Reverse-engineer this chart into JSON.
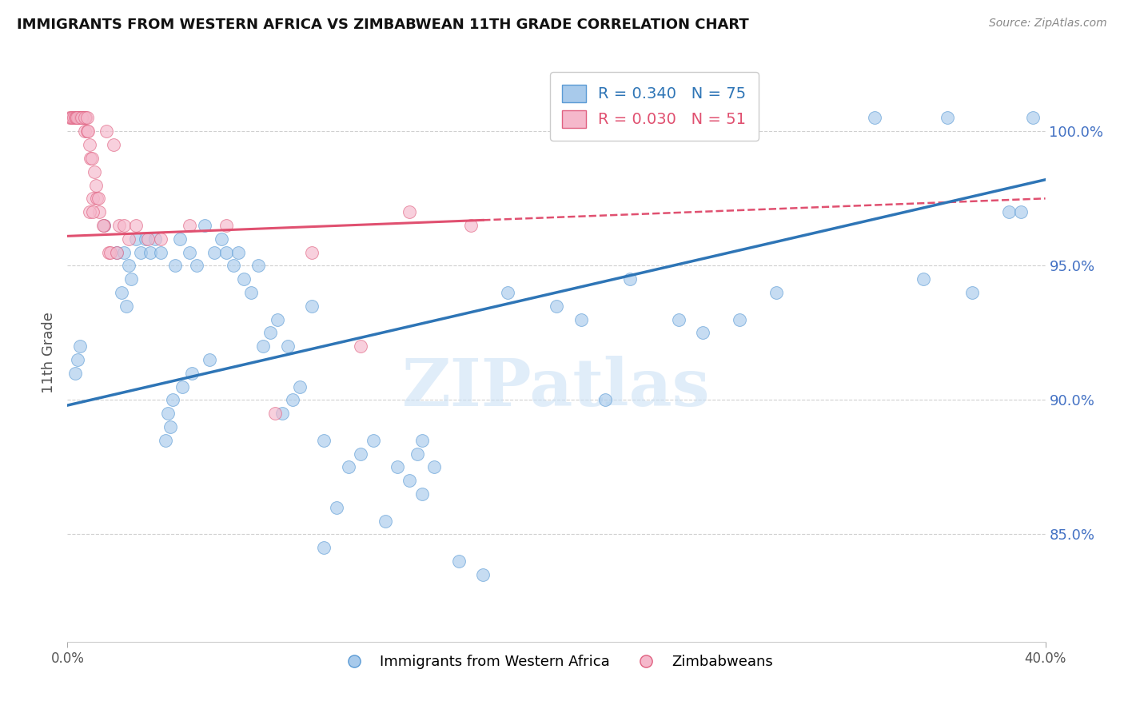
{
  "title": "IMMIGRANTS FROM WESTERN AFRICA VS ZIMBABWEAN 11TH GRADE CORRELATION CHART",
  "source": "Source: ZipAtlas.com",
  "ylabel": "11th Grade",
  "xmin": 0.0,
  "xmax": 40.0,
  "ymin": 81.0,
  "ymax": 102.5,
  "blue_R": 0.34,
  "blue_N": 75,
  "pink_R": 0.03,
  "pink_N": 51,
  "blue_color": "#a8caeb",
  "pink_color": "#f5b8cb",
  "blue_edge_color": "#5b9bd5",
  "pink_edge_color": "#e06080",
  "blue_line_color": "#2e75b6",
  "pink_line_color": "#e05070",
  "blue_legend": "Immigrants from Western Africa",
  "pink_legend": "Zimbabweans",
  "watermark": "ZIPatlas",
  "yticks": [
    85.0,
    90.0,
    95.0,
    100.0
  ],
  "ytick_labels": [
    "85.0%",
    "90.0%",
    "95.0%",
    "100.0%"
  ],
  "blue_trend_x0": 0.0,
  "blue_trend_y0": 89.8,
  "blue_trend_x1": 40.0,
  "blue_trend_y1": 98.2,
  "pink_trend_x0": 0.0,
  "pink_trend_y0": 96.1,
  "pink_trend_x1": 40.0,
  "pink_trend_y1": 97.5,
  "pink_solid_xmax": 17.0,
  "blue_scatter_x": [
    0.3,
    0.4,
    0.5,
    1.5,
    2.0,
    2.3,
    2.5,
    2.8,
    3.0,
    3.2,
    3.4,
    3.6,
    3.8,
    4.0,
    4.2,
    4.4,
    4.6,
    5.0,
    5.3,
    5.6,
    6.0,
    6.3,
    6.5,
    6.8,
    7.0,
    7.2,
    7.5,
    7.8,
    8.0,
    8.3,
    8.6,
    9.0,
    9.5,
    10.0,
    10.5,
    11.0,
    11.5,
    12.0,
    12.5,
    13.0,
    13.5,
    14.0,
    14.5,
    15.0,
    16.0,
    17.0,
    18.0,
    20.0,
    21.0,
    22.0,
    23.0,
    25.0,
    26.0,
    27.5,
    29.0,
    33.0,
    35.0,
    36.0,
    37.0,
    38.5,
    39.0,
    39.5,
    14.3,
    14.5,
    10.5,
    2.2,
    2.4,
    2.6,
    4.1,
    4.3,
    4.7,
    5.1,
    5.8,
    8.8,
    9.2
  ],
  "blue_scatter_y": [
    91.0,
    91.5,
    92.0,
    96.5,
    95.5,
    95.5,
    95.0,
    96.0,
    95.5,
    96.0,
    95.5,
    96.0,
    95.5,
    88.5,
    89.0,
    95.0,
    96.0,
    95.5,
    95.0,
    96.5,
    95.5,
    96.0,
    95.5,
    95.0,
    95.5,
    94.5,
    94.0,
    95.0,
    92.0,
    92.5,
    93.0,
    92.0,
    90.5,
    93.5,
    88.5,
    86.0,
    87.5,
    88.0,
    88.5,
    85.5,
    87.5,
    87.0,
    86.5,
    87.5,
    84.0,
    83.5,
    94.0,
    93.5,
    93.0,
    90.0,
    94.5,
    93.0,
    92.5,
    93.0,
    94.0,
    100.5,
    94.5,
    100.5,
    94.0,
    97.0,
    97.0,
    100.5,
    88.0,
    88.5,
    84.5,
    94.0,
    93.5,
    94.5,
    89.5,
    90.0,
    90.5,
    91.0,
    91.5,
    89.5,
    90.0
  ],
  "pink_scatter_x": [
    0.1,
    0.15,
    0.2,
    0.25,
    0.3,
    0.35,
    0.4,
    0.45,
    0.5,
    0.55,
    0.6,
    0.65,
    0.7,
    0.75,
    0.8,
    0.85,
    0.9,
    0.95,
    1.0,
    1.05,
    1.1,
    1.15,
    1.2,
    1.3,
    1.5,
    1.7,
    1.9,
    2.1,
    2.3,
    2.8,
    3.3,
    3.8,
    5.0,
    6.5,
    8.5,
    10.0,
    12.0,
    14.0,
    16.5,
    0.38,
    0.58,
    0.72,
    0.82,
    0.92,
    1.02,
    1.25,
    1.45,
    1.6,
    1.75,
    2.0,
    2.5
  ],
  "pink_scatter_y": [
    100.5,
    100.5,
    100.5,
    100.5,
    100.5,
    100.5,
    100.5,
    100.5,
    100.5,
    100.5,
    100.5,
    100.5,
    100.0,
    100.5,
    100.0,
    100.0,
    99.5,
    99.0,
    99.0,
    97.5,
    98.5,
    98.0,
    97.5,
    97.0,
    96.5,
    95.5,
    99.5,
    96.5,
    96.5,
    96.5,
    96.0,
    96.0,
    96.5,
    96.5,
    89.5,
    95.5,
    92.0,
    97.0,
    96.5,
    100.5,
    100.5,
    100.5,
    100.5,
    97.0,
    97.0,
    97.5,
    96.5,
    100.0,
    95.5,
    95.5,
    96.0
  ]
}
